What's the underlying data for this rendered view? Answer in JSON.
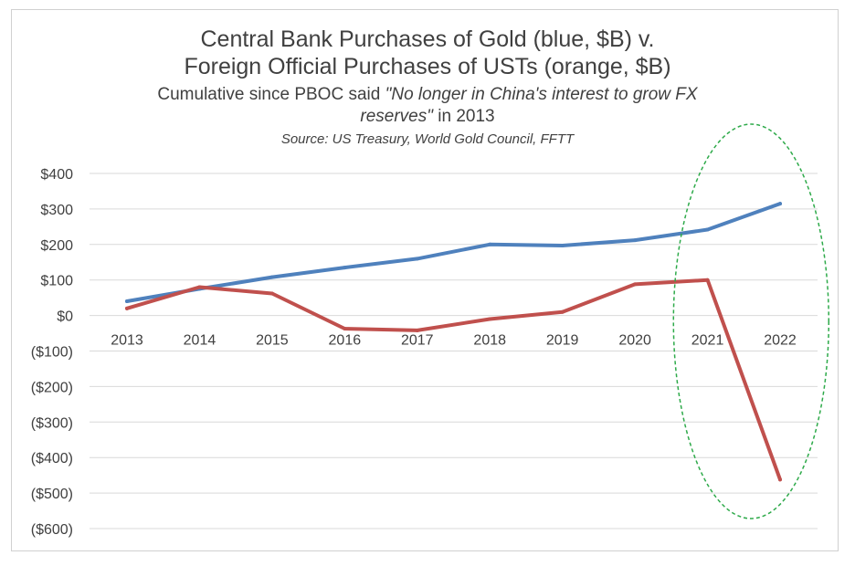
{
  "chart_data": {
    "type": "line",
    "title_line1": "Central Bank Purchases of Gold (blue, $B) v.",
    "title_line2": "Foreign Official Purchases of USTs (orange, $B)",
    "subtitle_pre": "Cumulative since PBOC said ",
    "subtitle_italic1": "\"No longer in China's interest to grow FX",
    "subtitle_italic2": "reserves\"",
    "subtitle_post": " in 2013",
    "source": "Source: US Treasury, World Gold Council, FFTT",
    "categories": [
      "2013",
      "2014",
      "2015",
      "2016",
      "2017",
      "2018",
      "2019",
      "2020",
      "2021",
      "2022"
    ],
    "series": [
      {
        "color": "#4f81bd",
        "values": [
          40,
          75,
          108,
          135,
          160,
          200,
          197,
          212,
          242,
          315
        ]
      },
      {
        "color": "#c0504d",
        "values": [
          20,
          80,
          62,
          -37,
          -42,
          -10,
          10,
          88,
          100,
          -462
        ]
      }
    ],
    "ylim": [
      -600,
      400
    ],
    "yticks": [
      400,
      300,
      200,
      100,
      0,
      -100,
      -200,
      -300,
      -400,
      -500,
      -600
    ],
    "ytick_labels": [
      "$400",
      "$300",
      "$200",
      "$100",
      "$0",
      "($100)",
      "($200)",
      "($300)",
      "($400)",
      "($500)",
      "($600)"
    ],
    "grid": true,
    "annotation": {
      "shape": "dashed-ellipse",
      "color": "#2eaa4a",
      "around": [
        "2021",
        "2022"
      ]
    }
  }
}
